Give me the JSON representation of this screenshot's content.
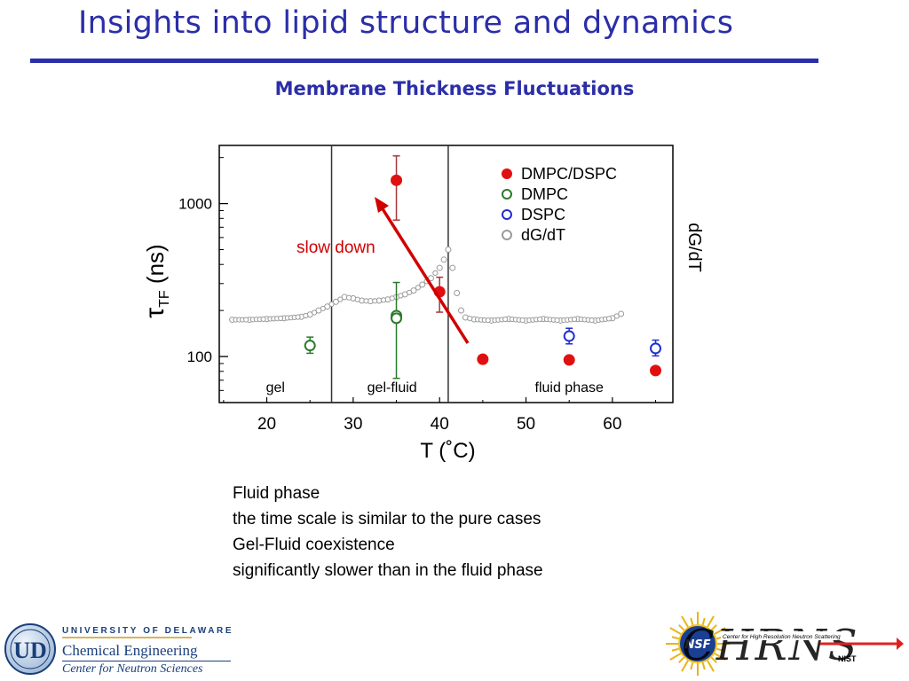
{
  "slide": {
    "title": "Insights into lipid structure and dynamics",
    "subtitle": "Membrane Thickness Fluctuations"
  },
  "chart_data": {
    "type": "scatter",
    "xlabel": "T (˚C)",
    "ylabel": "τTF (ns)",
    "ylabel_main": "τ",
    "ylabel_sub": "TF",
    "ylabel_units": "(ns)",
    "right_ylabel": "dG/dT",
    "x_ticks": [
      "20",
      "30",
      "40",
      "50",
      "60"
    ],
    "x_tick_values": [
      20,
      30,
      40,
      50,
      60
    ],
    "y_ticks": [
      "100",
      "1000"
    ],
    "y_tick_values": [
      100,
      1000
    ],
    "xlim": [
      14.5,
      67
    ],
    "ylim": [
      50,
      2400
    ],
    "y_scale": "log",
    "phase_boundaries": [
      27.5,
      41
    ],
    "phase_labels": [
      {
        "text": "gel",
        "x": 21
      },
      {
        "text": "gel-fluid",
        "x": 34.5
      },
      {
        "text": "fluid phase",
        "x": 55
      }
    ],
    "annotation": {
      "text": "slow down",
      "color": "#d10000"
    },
    "series": [
      {
        "name": "DMPC/DSPC",
        "color": "#e01010",
        "filled": true,
        "points": [
          {
            "x": 35,
            "y": 1420,
            "err_low": 780,
            "err_high": 2050
          },
          {
            "x": 40,
            "y": 265,
            "err_low": 195,
            "err_high": 330
          },
          {
            "x": 45,
            "y": 96,
            "err_low": 92,
            "err_high": 101
          },
          {
            "x": 55,
            "y": 95,
            "err_low": 92,
            "err_high": 98
          },
          {
            "x": 65,
            "y": 81,
            "err_low": 78,
            "err_high": 84
          }
        ]
      },
      {
        "name": "DMPC",
        "color": "#2a7a2a",
        "filled": false,
        "points": [
          {
            "x": 25,
            "y": 118,
            "err_low": 105,
            "err_high": 134
          },
          {
            "x": 35,
            "y": 185,
            "err_low": 72,
            "err_high": 305
          },
          {
            "x": 35,
            "y": 178,
            "err_low": 170,
            "err_high": 188
          }
        ]
      },
      {
        "name": "DSPC",
        "color": "#1e2ed0",
        "filled": false,
        "points": [
          {
            "x": 55,
            "y": 136,
            "err_low": 121,
            "err_high": 153
          },
          {
            "x": 65,
            "y": 113,
            "err_low": 101,
            "err_high": 128
          }
        ]
      },
      {
        "name": "dG/dT",
        "color": "#9a9a9a",
        "filled": false,
        "points": [
          {
            "x": 16,
            "y": 174
          },
          {
            "x": 18,
            "y": 174
          },
          {
            "x": 20,
            "y": 176
          },
          {
            "x": 22,
            "y": 178
          },
          {
            "x": 24,
            "y": 182
          },
          {
            "x": 25,
            "y": 188
          },
          {
            "x": 26,
            "y": 200
          },
          {
            "x": 27,
            "y": 212
          },
          {
            "x": 28,
            "y": 228
          },
          {
            "x": 29,
            "y": 245
          },
          {
            "x": 30,
            "y": 240
          },
          {
            "x": 31,
            "y": 232
          },
          {
            "x": 32,
            "y": 230
          },
          {
            "x": 33,
            "y": 232
          },
          {
            "x": 34,
            "y": 236
          },
          {
            "x": 35,
            "y": 245
          },
          {
            "x": 36,
            "y": 255
          },
          {
            "x": 37,
            "y": 270
          },
          {
            "x": 38,
            "y": 295
          },
          {
            "x": 39,
            "y": 325
          },
          {
            "x": 40,
            "y": 380
          },
          {
            "x": 40.5,
            "y": 430
          },
          {
            "x": 41,
            "y": 500
          },
          {
            "x": 41.5,
            "y": 380
          },
          {
            "x": 42,
            "y": 260
          },
          {
            "x": 42.5,
            "y": 200
          },
          {
            "x": 43,
            "y": 180
          },
          {
            "x": 44,
            "y": 175
          },
          {
            "x": 46,
            "y": 172
          },
          {
            "x": 48,
            "y": 176
          },
          {
            "x": 50,
            "y": 172
          },
          {
            "x": 52,
            "y": 176
          },
          {
            "x": 54,
            "y": 172
          },
          {
            "x": 56,
            "y": 176
          },
          {
            "x": 58,
            "y": 172
          },
          {
            "x": 60,
            "y": 178
          },
          {
            "x": 61,
            "y": 190
          }
        ]
      }
    ]
  },
  "notes": {
    "line1": "Fluid phase",
    "line2": "the time scale is similar to the pure cases",
    "line3": "Gel-Fluid coexistence",
    "line4": "significantly slower than in the fluid phase"
  },
  "logos": {
    "ud_university": "UNIVERSITY OF DELAWARE",
    "ud_department": "Chemical Engineering",
    "ud_center": "Center for Neutron Sciences",
    "ud_seal_letters": "UD",
    "chrns_text": "CHRNS",
    "chrns_caption": "Center for High Resolution Neutron Scattering",
    "nsf_text": "NSF",
    "nist_text": "NIST"
  },
  "colors": {
    "title": "#2b2ea8",
    "annotation": "#d10000"
  }
}
